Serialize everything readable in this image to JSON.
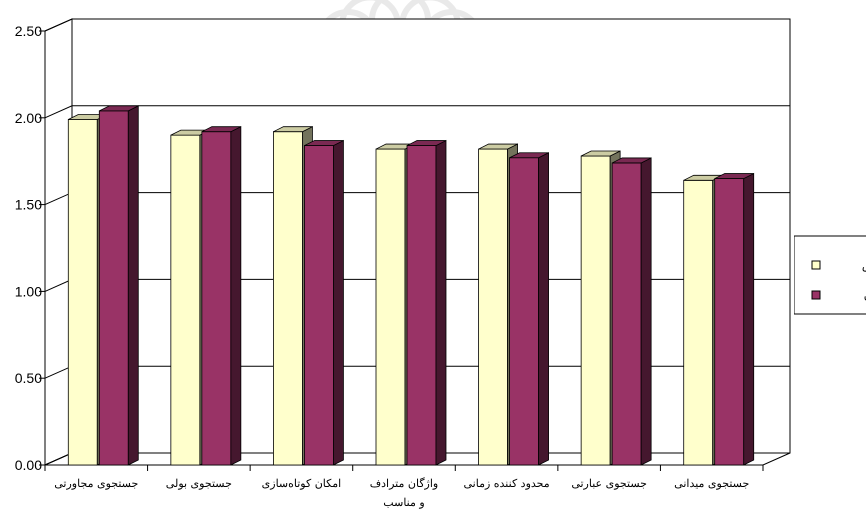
{
  "chart_data": {
    "type": "bar",
    "title": "",
    "xlabel": "",
    "ylabel": "",
    "ylim": [
      0,
      2.5
    ],
    "yticks": [
      "0.00",
      "0.50",
      "1.00",
      "1.50",
      "2.00",
      "2.50"
    ],
    "grid": true,
    "legend_position": "right",
    "categories": [
      [
        "جستجوی مجاورتی"
      ],
      [
        "جستجوی بولی"
      ],
      [
        "امکان کوتاه‌سازی"
      ],
      [
        "واژگان مترادف",
        "و مناسب"
      ],
      [
        "محدود کننده زمانی"
      ],
      [
        "جستجوی عبارتی"
      ],
      [
        "جستجوی میدانی"
      ]
    ],
    "series": [
      {
        "name": "بندرعباس",
        "color": "#FFFFCC",
        "values": [
          1.99,
          1.9,
          1.92,
          1.82,
          1.82,
          1.78,
          1.64
        ]
      },
      {
        "name": "رفسنجان",
        "color": "#993366",
        "values": [
          2.04,
          1.92,
          1.84,
          1.84,
          1.77,
          1.74,
          1.65
        ]
      }
    ]
  }
}
